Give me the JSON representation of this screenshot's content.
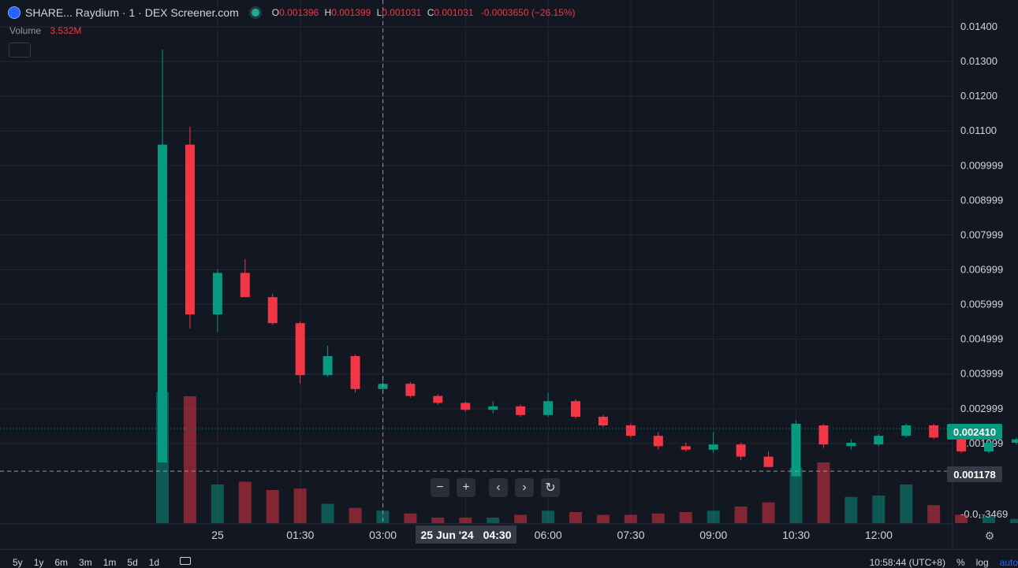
{
  "header": {
    "title": "SHARE... Raydium · 1 · DEX Screener.com",
    "status_dot_color": "#26a69a",
    "ohlc": {
      "O": "0.001396",
      "H": "0.001399",
      "L": "0.001031",
      "C": "0.001031",
      "change": "-0.0003650 (−26.15%)"
    }
  },
  "volume": {
    "label": "Volume",
    "value": "3.532M"
  },
  "colors": {
    "up": "#089981",
    "down": "#f23645",
    "background": "#131722",
    "grid": "#242733"
  },
  "price_axis": {
    "ticks": [
      "0.01400",
      "0.01300",
      "0.01200",
      "0.01100",
      "0.009999",
      "0.008999",
      "0.007999",
      "0.006999",
      "0.005999",
      "0.004999",
      "0.003999",
      "0.002999",
      "0.001999",
      "-0.0₁₇3469"
    ],
    "last_price": "0.002410",
    "crosshair_price": "0.001178"
  },
  "time_axis": {
    "ticks": [
      "25",
      "01:30",
      "03:00",
      "04:30",
      "06:00",
      "07:30",
      "09:00",
      "10:30",
      "12:00"
    ],
    "crosshair_date": "25 Jun '24",
    "crosshair_time": "04:30"
  },
  "controls": {
    "zoom_out": "−",
    "zoom_in": "+",
    "scroll_left": "‹",
    "scroll_right": "›",
    "reset": "↻"
  },
  "settings_icon": "gear-icon",
  "bottom_bar": {
    "ranges": [
      "5y",
      "1y",
      "6m",
      "3m",
      "1m",
      "5d",
      "1d"
    ],
    "clock": "10:58:44 (UTC+8)",
    "percent": "%",
    "log": "log",
    "auto": "auto"
  },
  "chart_data": {
    "type": "candlestick",
    "interval": "15m",
    "series": [
      {
        "time": "24 23:45",
        "o": 0.00143,
        "h": 0.01334,
        "l": 0.00143,
        "c": 0.0106,
        "v": 0.95
      },
      {
        "time": "00:00",
        "o": 0.0106,
        "h": 0.01112,
        "l": 0.0053,
        "c": 0.0057,
        "v": 0.92
      },
      {
        "time": "00:15",
        "o": 0.0057,
        "h": 0.007,
        "l": 0.0052,
        "c": 0.0069,
        "v": 0.28
      },
      {
        "time": "00:30",
        "o": 0.0069,
        "h": 0.0073,
        "l": 0.0062,
        "c": 0.0062,
        "v": 0.3
      },
      {
        "time": "00:45",
        "o": 0.0062,
        "h": 0.0063,
        "l": 0.0054,
        "c": 0.00545,
        "v": 0.24
      },
      {
        "time": "01:00",
        "o": 0.00545,
        "h": 0.0055,
        "l": 0.0037,
        "c": 0.00395,
        "v": 0.25
      },
      {
        "time": "01:15",
        "o": 0.00395,
        "h": 0.0048,
        "l": 0.0039,
        "c": 0.0045,
        "v": 0.14
      },
      {
        "time": "01:30",
        "o": 0.0045,
        "h": 0.00455,
        "l": 0.00345,
        "c": 0.00355,
        "v": 0.11
      },
      {
        "time": "01:45",
        "o": 0.00355,
        "h": 0.00385,
        "l": 0.00345,
        "c": 0.0037,
        "v": 0.09
      },
      {
        "time": "02:00",
        "o": 0.0037,
        "h": 0.00375,
        "l": 0.0033,
        "c": 0.00335,
        "v": 0.07
      },
      {
        "time": "02:15",
        "o": 0.00335,
        "h": 0.0034,
        "l": 0.0031,
        "c": 0.00315,
        "v": 0.04
      },
      {
        "time": "02:30",
        "o": 0.00315,
        "h": 0.0032,
        "l": 0.0029,
        "c": 0.00295,
        "v": 0.04
      },
      {
        "time": "02:45",
        "o": 0.00295,
        "h": 0.0032,
        "l": 0.00285,
        "c": 0.00305,
        "v": 0.04
      },
      {
        "time": "03:00",
        "o": 0.00305,
        "h": 0.0031,
        "l": 0.00275,
        "c": 0.0028,
        "v": 0.06
      },
      {
        "time": "03:15",
        "o": 0.0028,
        "h": 0.00345,
        "l": 0.00275,
        "c": 0.0032,
        "v": 0.09
      },
      {
        "time": "03:30",
        "o": 0.0032,
        "h": 0.00325,
        "l": 0.0027,
        "c": 0.00275,
        "v": 0.08
      },
      {
        "time": "03:45",
        "o": 0.00275,
        "h": 0.0028,
        "l": 0.00245,
        "c": 0.0025,
        "v": 0.06
      },
      {
        "time": "04:00",
        "o": 0.0025,
        "h": 0.00255,
        "l": 0.00215,
        "c": 0.0022,
        "v": 0.06
      },
      {
        "time": "04:15",
        "o": 0.0022,
        "h": 0.0023,
        "l": 0.0018,
        "c": 0.0019,
        "v": 0.07
      },
      {
        "time": "04:30",
        "o": 0.0019,
        "h": 0.002,
        "l": 0.00175,
        "c": 0.0018,
        "v": 0.08
      },
      {
        "time": "04:45",
        "o": 0.0018,
        "h": 0.0023,
        "l": 0.0017,
        "c": 0.00195,
        "v": 0.09
      },
      {
        "time": "05:00",
        "o": 0.00195,
        "h": 0.002,
        "l": 0.0015,
        "c": 0.0016,
        "v": 0.12
      },
      {
        "time": "05:15",
        "o": 0.0016,
        "h": 0.00175,
        "l": 0.0013,
        "c": 0.0013,
        "v": 0.15
      },
      {
        "time": "05:30",
        "o": 0.00103,
        "h": 0.00265,
        "l": 0.00103,
        "c": 0.00255,
        "v": 0.4
      },
      {
        "time": "05:45",
        "o": 0.0025,
        "h": 0.00255,
        "l": 0.00185,
        "c": 0.00195,
        "v": 0.44
      },
      {
        "time": "06:00",
        "o": 0.0019,
        "h": 0.0021,
        "l": 0.0018,
        "c": 0.002,
        "v": 0.19
      },
      {
        "time": "06:15",
        "o": 0.00195,
        "h": 0.00225,
        "l": 0.0019,
        "c": 0.0022,
        "v": 0.2
      },
      {
        "time": "06:30",
        "o": 0.0022,
        "h": 0.00255,
        "l": 0.00215,
        "c": 0.0025,
        "v": 0.28
      },
      {
        "time": "06:45",
        "o": 0.0025,
        "h": 0.00255,
        "l": 0.0021,
        "c": 0.00215,
        "v": 0.13
      },
      {
        "time": "07:00",
        "o": 0.00215,
        "h": 0.00225,
        "l": 0.0017,
        "c": 0.00175,
        "v": 0.06
      },
      {
        "time": "07:15",
        "o": 0.00175,
        "h": 0.00205,
        "l": 0.0017,
        "c": 0.002,
        "v": 0.05
      },
      {
        "time": "07:30",
        "o": 0.002,
        "h": 0.00215,
        "l": 0.00195,
        "c": 0.0021,
        "v": 0.03
      },
      {
        "time": "07:45",
        "o": 0.0021,
        "h": 0.00222,
        "l": 0.00205,
        "c": 0.00215,
        "v": 0.02
      },
      {
        "time": "08:00",
        "o": 0.00215,
        "h": 0.00225,
        "l": 0.0021,
        "c": 0.0022,
        "v": 0.02
      },
      {
        "time": "08:15",
        "o": 0.0021,
        "h": 0.0022,
        "l": 0.002,
        "c": 0.00212,
        "v": 0.02
      },
      {
        "time": "08:30",
        "o": 0.00212,
        "h": 0.00265,
        "l": 0.0021,
        "c": 0.0026,
        "v": 0.11
      },
      {
        "time": "08:45",
        "o": 0.0026,
        "h": 0.00262,
        "l": 0.00235,
        "c": 0.00238,
        "v": 0.08
      },
      {
        "time": "09:00",
        "o": 0.00238,
        "h": 0.00242,
        "l": 0.0023,
        "c": 0.00235,
        "v": 0.03
      },
      {
        "time": "09:15",
        "o": 0.00235,
        "h": 0.00245,
        "l": 0.0023,
        "c": 0.00238,
        "v": 0.03
      },
      {
        "time": "09:30",
        "o": 0.00238,
        "h": 0.0024,
        "l": 0.0023,
        "c": 0.00235,
        "v": 0.02
      },
      {
        "time": "09:45",
        "o": 0.00235,
        "h": 0.00252,
        "l": 0.00232,
        "c": 0.00248,
        "v": 0.04
      },
      {
        "time": "10:00",
        "o": 0.00248,
        "h": 0.0025,
        "l": 0.00232,
        "c": 0.00235,
        "v": 0.03
      },
      {
        "time": "10:15",
        "o": 0.00232,
        "h": 0.00245,
        "l": 0.00228,
        "c": 0.0024,
        "v": 0.02
      },
      {
        "time": "10:30",
        "o": 0.0024,
        "h": 0.00252,
        "l": 0.00238,
        "c": 0.00248,
        "v": 0.03
      },
      {
        "time": "10:45",
        "o": 0.00245,
        "h": 0.00265,
        "l": 0.00245,
        "c": 0.00262,
        "v": 0.04
      },
      {
        "time": "11:00",
        "o": 0.00262,
        "h": 0.00265,
        "l": 0.00245,
        "c": 0.00248,
        "v": 0.05
      },
      {
        "time": "11:15",
        "o": 0.00248,
        "h": 0.0025,
        "l": 0.00238,
        "c": 0.00242,
        "v": 0.02
      },
      {
        "time": "11:30",
        "o": 0.00242,
        "h": 0.0025,
        "l": 0.00238,
        "c": 0.00241,
        "v": 0.01
      }
    ]
  }
}
